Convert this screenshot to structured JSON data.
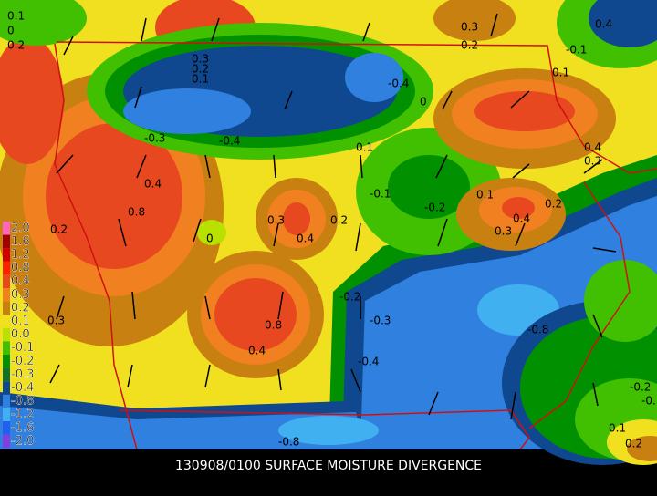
{
  "title": "130908/0100 SURFACE MOISTURE DIVERGENCE",
  "legend": [
    {
      "label": "2.0",
      "color": "#ff66c0"
    },
    {
      "label": "1.6",
      "color": "#a00000"
    },
    {
      "label": "1.2",
      "color": "#d00000"
    },
    {
      "label": "0.8",
      "color": "#ff2000"
    },
    {
      "label": "0.4",
      "color": "#e84820"
    },
    {
      "label": "0.3",
      "color": "#f08020"
    },
    {
      "label": "0.2",
      "color": "#c88010"
    },
    {
      "label": "0.1",
      "color": "#f0e020"
    },
    {
      "label": "0.0",
      "color": "#b8e000"
    },
    {
      "label": "-0.1",
      "color": "#40c000"
    },
    {
      "label": "-0.2",
      "color": "#009000"
    },
    {
      "label": "-0.3",
      "color": "#107030"
    },
    {
      "label": "-0.4",
      "color": "#104890"
    },
    {
      "label": "-0.8",
      "color": "#3080e0"
    },
    {
      "label": "-1.2",
      "color": "#40b0f0"
    },
    {
      "label": "-1.6",
      "color": "#2060f0"
    },
    {
      "label": "-2.0",
      "color": "#8040e0"
    }
  ],
  "contour_labels": [
    "0.1",
    "0",
    "0.2",
    "0.3",
    "0.2",
    "0.1",
    "0.3",
    "0.2",
    "-0.4",
    "0",
    "-0.3",
    "-0.4",
    "0.4",
    "0.8",
    "0.2",
    "0.1",
    "-0.1",
    "-0.2",
    "0.1",
    "0.3",
    "0.4",
    "0.2",
    "0",
    "0.4",
    "0.3",
    "0.2",
    "0.4",
    "0.3",
    "-0.2",
    "-0.3",
    "0.8",
    "0.4",
    "0.3",
    "-0.4",
    "-0.8",
    "-0.8",
    "-0.2",
    "-0.1",
    "0.1",
    "0.2",
    "0.1",
    "-0.1",
    "0.4"
  ]
}
